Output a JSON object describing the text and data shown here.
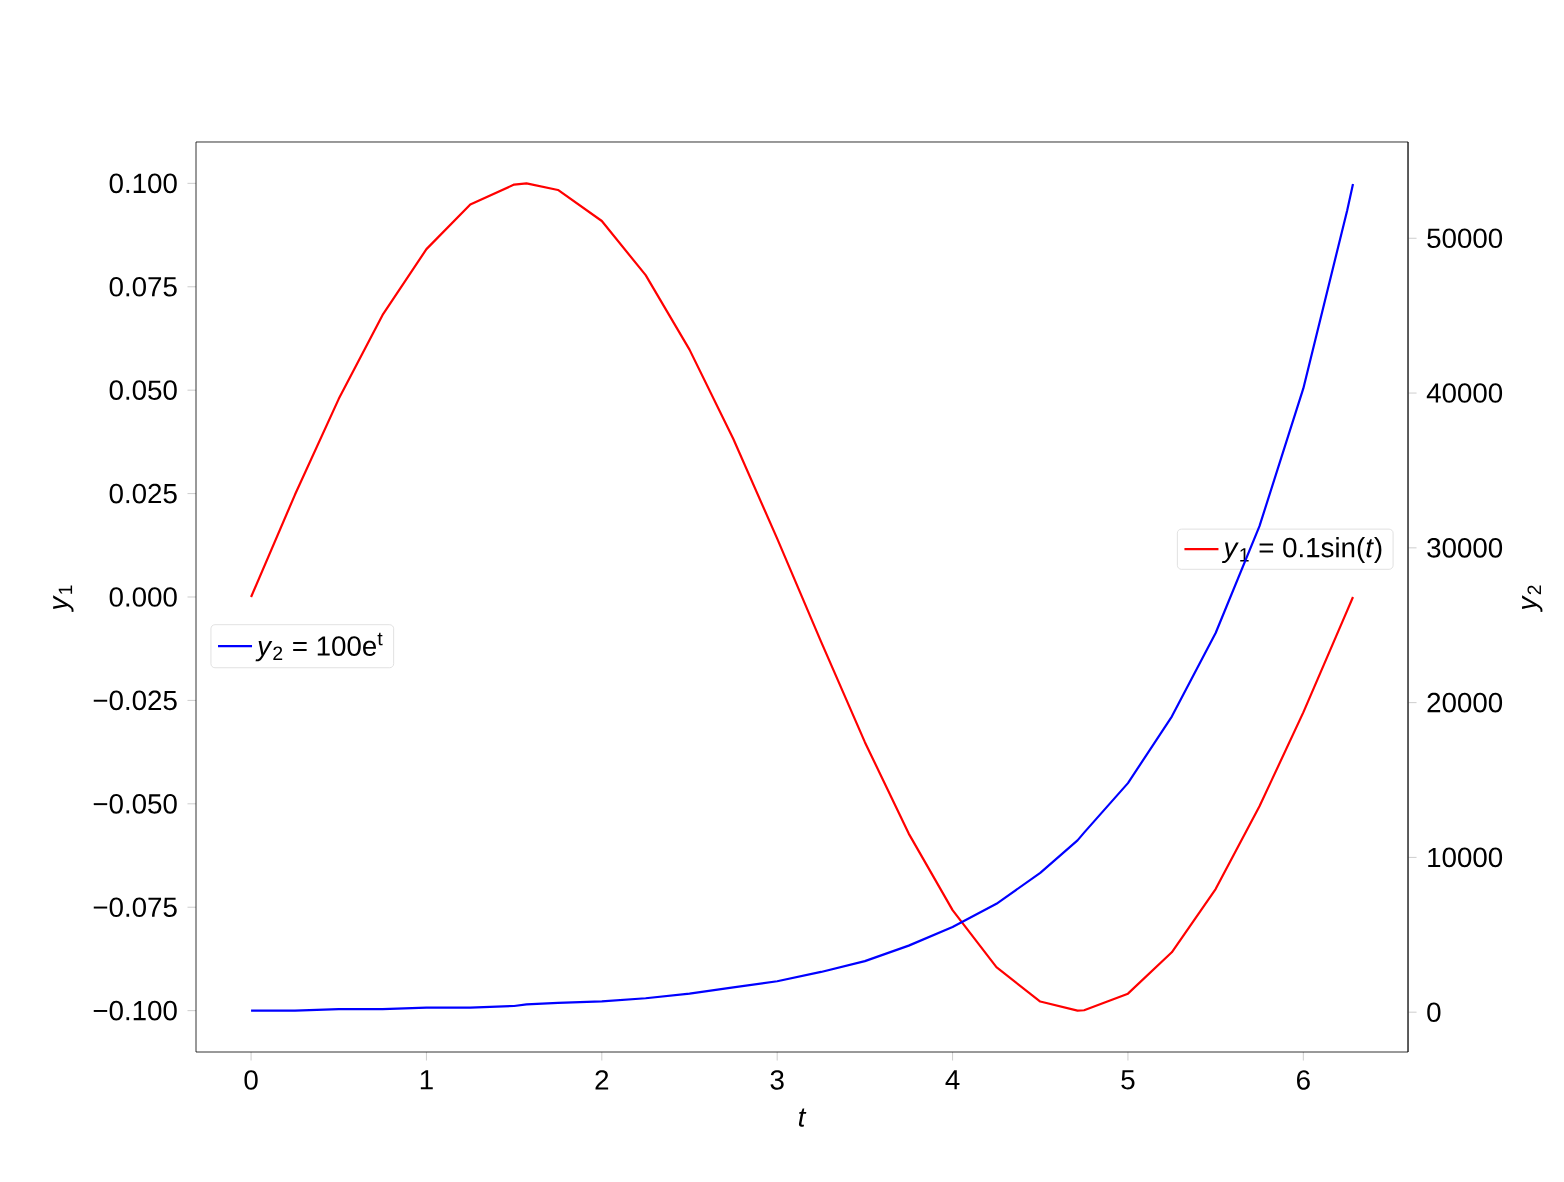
{
  "chart_data": {
    "type": "line",
    "xlabel": "*t*",
    "ylabel": "*y*$_{1}$",
    "y2label": "*y*$_{2}$",
    "x": [
      0,
      0.25,
      0.5,
      0.75,
      1,
      1.25,
      1.5,
      1.5708,
      1.75,
      2,
      2.25,
      2.5,
      2.75,
      3,
      3.25,
      3.5,
      3.75,
      4,
      4.25,
      4.5,
      4.7124,
      4.75,
      5,
      5.25,
      5.5,
      5.75,
      6,
      6.25,
      6.2832
    ],
    "series": [
      {
        "name": "*y*$_{1}$ = 0.1sin(*t*)",
        "color": "#ff0000",
        "values": [
          0,
          0.0247,
          0.0479,
          0.0682,
          0.0841,
          0.0949,
          0.0997,
          0.1,
          0.0984,
          0.0909,
          0.0778,
          0.0598,
          0.0382,
          0.0141,
          -0.0108,
          -0.0351,
          -0.0572,
          -0.0757,
          -0.0895,
          -0.0978,
          -0.1,
          -0.0999,
          -0.0959,
          -0.0859,
          -0.0706,
          -0.0506,
          -0.0279,
          -0.0033,
          0
        ]
      },
      {
        "name": "*y*$_{2}$ = 100e$^{t}$",
        "color": "#0000ff",
        "axis": "y2",
        "values": [
          100,
          100,
          200,
          200,
          300,
          300,
          400,
          500,
          600,
          700,
          900,
          1200,
          1600,
          2000,
          2600,
          3300,
          4300,
          5500,
          7000,
          9000,
          11100,
          11600,
          14800,
          19100,
          24500,
          31400,
          40300,
          51800,
          53500
        ]
      }
    ],
    "legend": "right",
    "xlim": [
      -0.314,
      6.597
    ],
    "xticks": [
      0,
      1,
      2,
      3,
      4,
      5,
      6
    ],
    "ylim": [
      -0.11,
      0.11
    ],
    "yticks": [
      {
        "value": -0.1,
        "label": "−0.100"
      },
      {
        "value": -0.075,
        "label": "−0.075"
      },
      {
        "value": -0.05,
        "label": "−0.050"
      },
      {
        "value": -0.025,
        "label": "−0.025"
      },
      {
        "value": 0,
        "label": "0.000"
      },
      {
        "value": 0.025,
        "label": "0.025"
      },
      {
        "value": 0.05,
        "label": "0.050"
      },
      {
        "value": 0.075,
        "label": "0.075"
      },
      {
        "value": 0.1,
        "label": "0.100"
      }
    ],
    "y2lim": [
      -2572,
      56221
    ],
    "y2ticks": [
      0,
      10000,
      20000,
      30000,
      40000,
      50000
    ]
  }
}
